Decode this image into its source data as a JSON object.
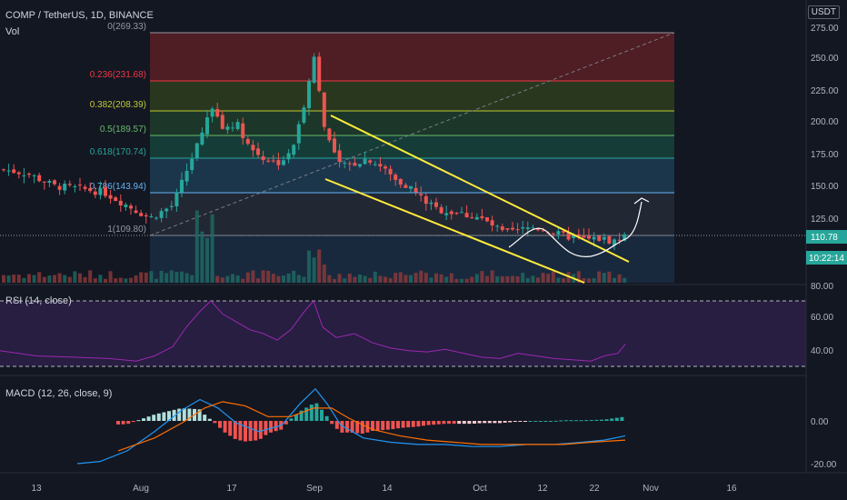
{
  "header": {
    "symbol": "COMP / TetherUS, 1D, BINANCE",
    "volume_label": "Vol",
    "currency_unit": "USDT"
  },
  "price_axis": {
    "ticks": [
      "275.00",
      "250.00",
      "225.00",
      "200.00",
      "175.00",
      "150.00",
      "125.00"
    ],
    "last_price": "110.78",
    "countdown": "10:22:14"
  },
  "fib_levels": [
    {
      "label": "0(269.33)",
      "price": 269.33
    },
    {
      "label": "0.236(231.68)",
      "price": 231.68
    },
    {
      "label": "0.382(208.39)",
      "price": 208.39
    },
    {
      "label": "0.5(189.57)",
      "price": 189.57
    },
    {
      "label": "0.618(170.74)",
      "price": 170.74
    },
    {
      "label": "0.786(143.94)",
      "price": 143.94
    },
    {
      "label": "1(109.80)",
      "price": 109.8
    }
  ],
  "rsi": {
    "label": "RSI (14, close)",
    "ticks": [
      "80.00",
      "60.00",
      "40.00"
    ],
    "upper": 80,
    "lower": 30
  },
  "macd": {
    "label": "MACD (12, 26, close, 9)",
    "ticks": [
      "0.00",
      "-20.00"
    ]
  },
  "time_axis": {
    "labels": [
      "13",
      "Aug",
      "17",
      "Sep",
      "14",
      "Oct",
      "12",
      "22",
      "Nov",
      "16"
    ]
  },
  "colors": {
    "background": "#131722",
    "up": "#26a69a",
    "down": "#ef5350",
    "channel": "#ffeb3b",
    "rsi_line": "#9c27b0",
    "macd_line": "#2196f3",
    "signal_line": "#ff6d00"
  }
}
